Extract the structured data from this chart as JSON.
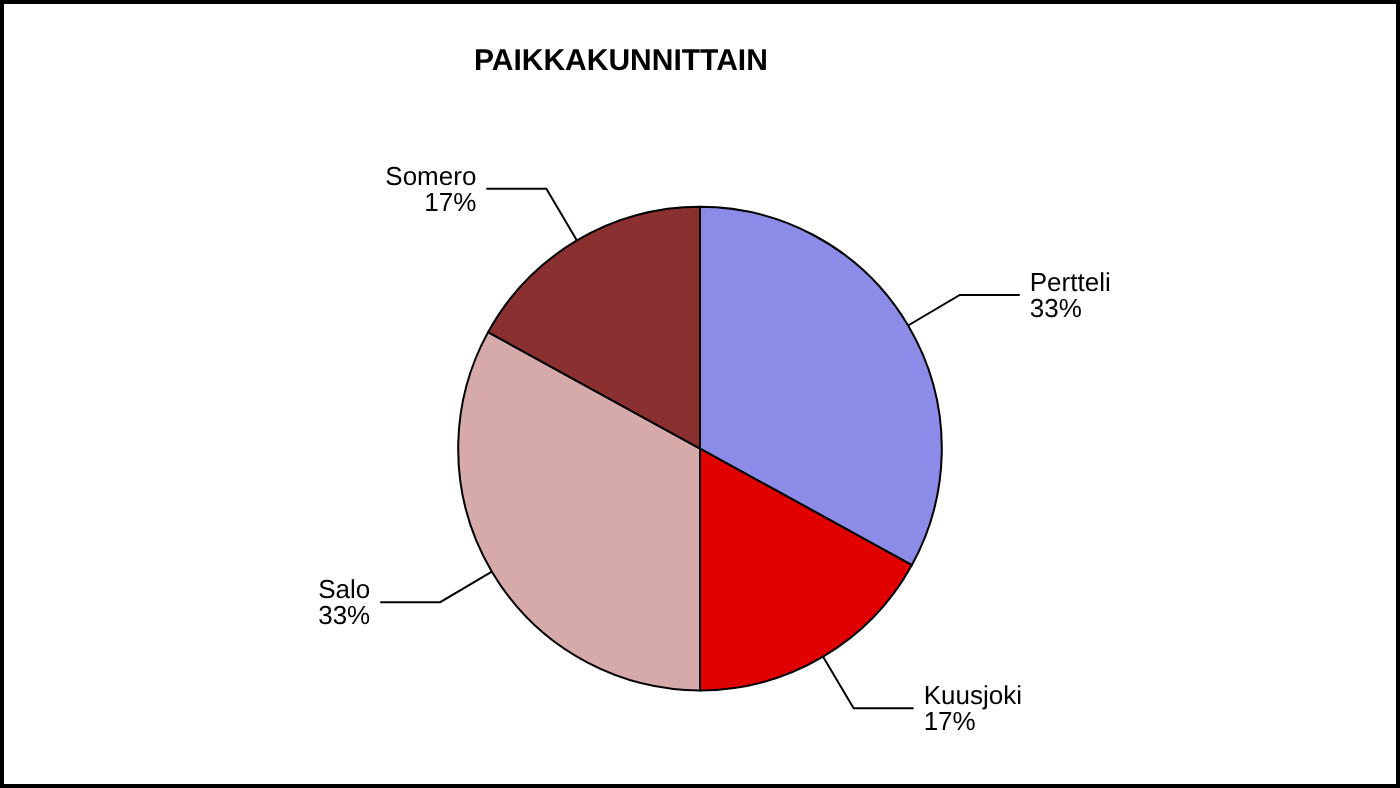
{
  "chart_data": {
    "type": "pie",
    "title": "PAIKKAKUNNITTAIN",
    "categories": [
      "Pertteli",
      "Kuusjoki",
      "Salo",
      "Somero"
    ],
    "values": [
      33,
      17,
      33,
      17
    ],
    "value_labels": [
      "33%",
      "17%",
      "33%",
      "17%"
    ],
    "colors": [
      "#8c8ce8",
      "#e00000",
      "#d6aaaa",
      "#8b3030"
    ],
    "legend": false
  }
}
